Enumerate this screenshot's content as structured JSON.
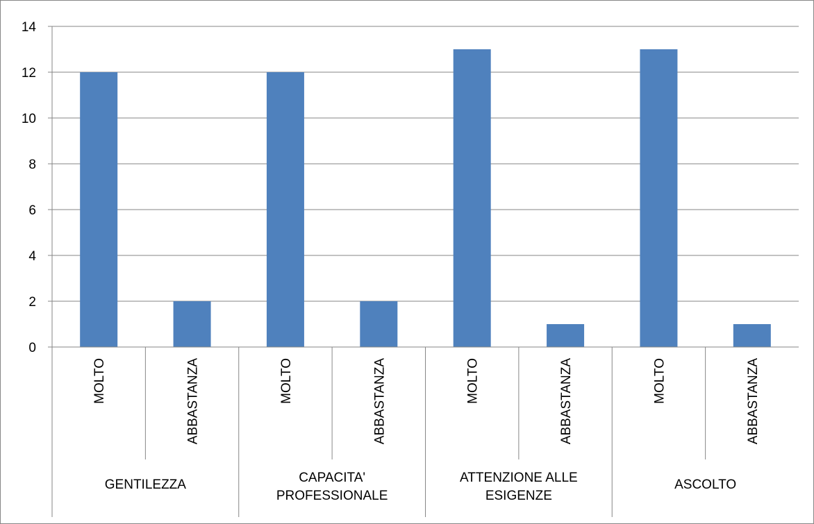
{
  "chart_data": {
    "type": "bar",
    "groups": [
      {
        "label_lines": [
          "GENTILEZZA"
        ],
        "categories": [
          "MOLTO",
          "ABBASTANZA"
        ],
        "values": [
          12,
          2
        ]
      },
      {
        "label_lines": [
          "CAPACITA'",
          "PROFESSIONALE"
        ],
        "categories": [
          "MOLTO",
          "ABBASTANZA"
        ],
        "values": [
          12,
          2
        ]
      },
      {
        "label_lines": [
          "ATTENZIONE ALLE",
          "ESIGENZE"
        ],
        "categories": [
          "MOLTO",
          "ABBASTANZA"
        ],
        "values": [
          13,
          1
        ]
      },
      {
        "label_lines": [
          "ASCOLTO"
        ],
        "categories": [
          "MOLTO",
          "ABBASTANZA"
        ],
        "values": [
          13,
          1
        ]
      }
    ],
    "ylim": [
      0,
      14
    ],
    "yticks": [
      0,
      2,
      4,
      6,
      8,
      10,
      12,
      14
    ],
    "grid": true,
    "legend": "none",
    "title": "",
    "xlabel": "",
    "ylabel": ""
  },
  "colors": {
    "bar": "#4f81bd",
    "grid": "#868686",
    "axis": "#868686",
    "border": "#868686"
  }
}
